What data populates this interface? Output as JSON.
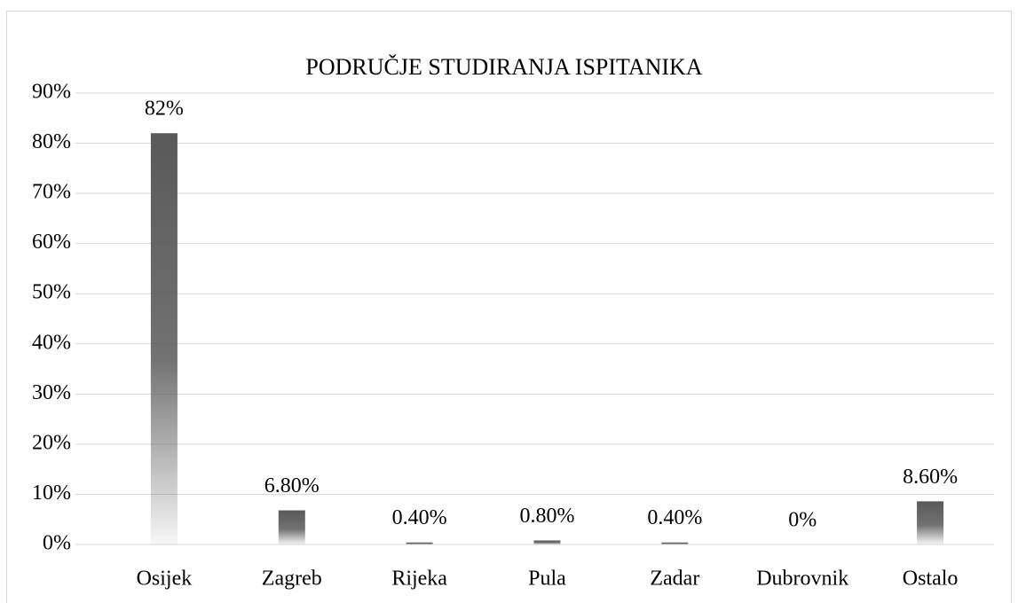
{
  "chart_data": {
    "type": "bar",
    "title": "PODRUČJE STUDIRANJA ISPITANIKA",
    "categories": [
      "Osijek",
      "Zagreb",
      "Rijeka",
      "Pula",
      "Zadar",
      "Dubrovnik",
      "Ostalo"
    ],
    "values": [
      82,
      6.8,
      0.4,
      0.8,
      0.4,
      0,
      8.6
    ],
    "value_labels": [
      "82%",
      "6.80%",
      "0.40%",
      "0.80%",
      "0.40%",
      "0%",
      "8.60%"
    ],
    "color": "#595959",
    "ylim": [
      0,
      90
    ],
    "yticks": [
      {
        "value": 0,
        "label": "0%"
      },
      {
        "value": 10,
        "label": "10%"
      },
      {
        "value": 20,
        "label": "20%"
      },
      {
        "value": 30,
        "label": "30%"
      },
      {
        "value": 40,
        "label": "40%"
      },
      {
        "value": 50,
        "label": "50%"
      },
      {
        "value": 60,
        "label": "60%"
      },
      {
        "value": 70,
        "label": "70%"
      },
      {
        "value": 80,
        "label": "80%"
      },
      {
        "value": 90,
        "label": "90%"
      }
    ],
    "grid": true
  }
}
